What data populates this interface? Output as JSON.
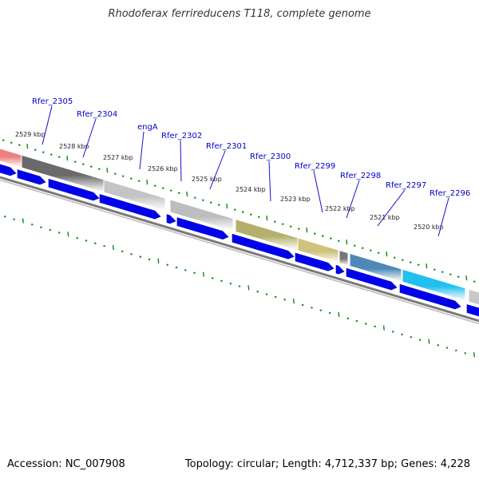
{
  "title": "Rhodoferax ferrireducens T118, complete genome",
  "footer": {
    "accession": "Accession: NC_007908",
    "stats": "Topology: circular; Length: 4,712,337 bp; Genes: 4,228"
  },
  "genes": [
    {
      "label": "Rfer_2305",
      "color": "#ee8080"
    },
    {
      "label": "Rfer_2304",
      "color": "#6a6a6a"
    },
    {
      "label": "engA",
      "color": "#c4c4c4"
    },
    {
      "label": "Rfer_2302",
      "color": "#bdbdbd"
    },
    {
      "label": "Rfer_2301",
      "color": "#b4b06c"
    },
    {
      "label": "Rfer_2300",
      "color": "#cfc27a"
    },
    {
      "label": "Rfer_2299",
      "color": "#777777"
    },
    {
      "label": "Rfer_2298",
      "color": "#4f88b8"
    },
    {
      "label": "Rfer_2297",
      "color": "#22c0ee"
    },
    {
      "label": "Rfer_2296",
      "color": "#c8c8c8"
    }
  ],
  "ticks": [
    "2529 kbp",
    "2528 kbp",
    "2527 kbp",
    "2526 kbp",
    "2525 kbp",
    "2524 kbp",
    "2523 kbp",
    "2522 kbp",
    "2521 kbp",
    "2520 kbp"
  ],
  "colors": {
    "cds_arrow": "#0000ee",
    "label_text": "#0000cc",
    "tick": "#118811",
    "backbone": "#7a7a7a"
  }
}
